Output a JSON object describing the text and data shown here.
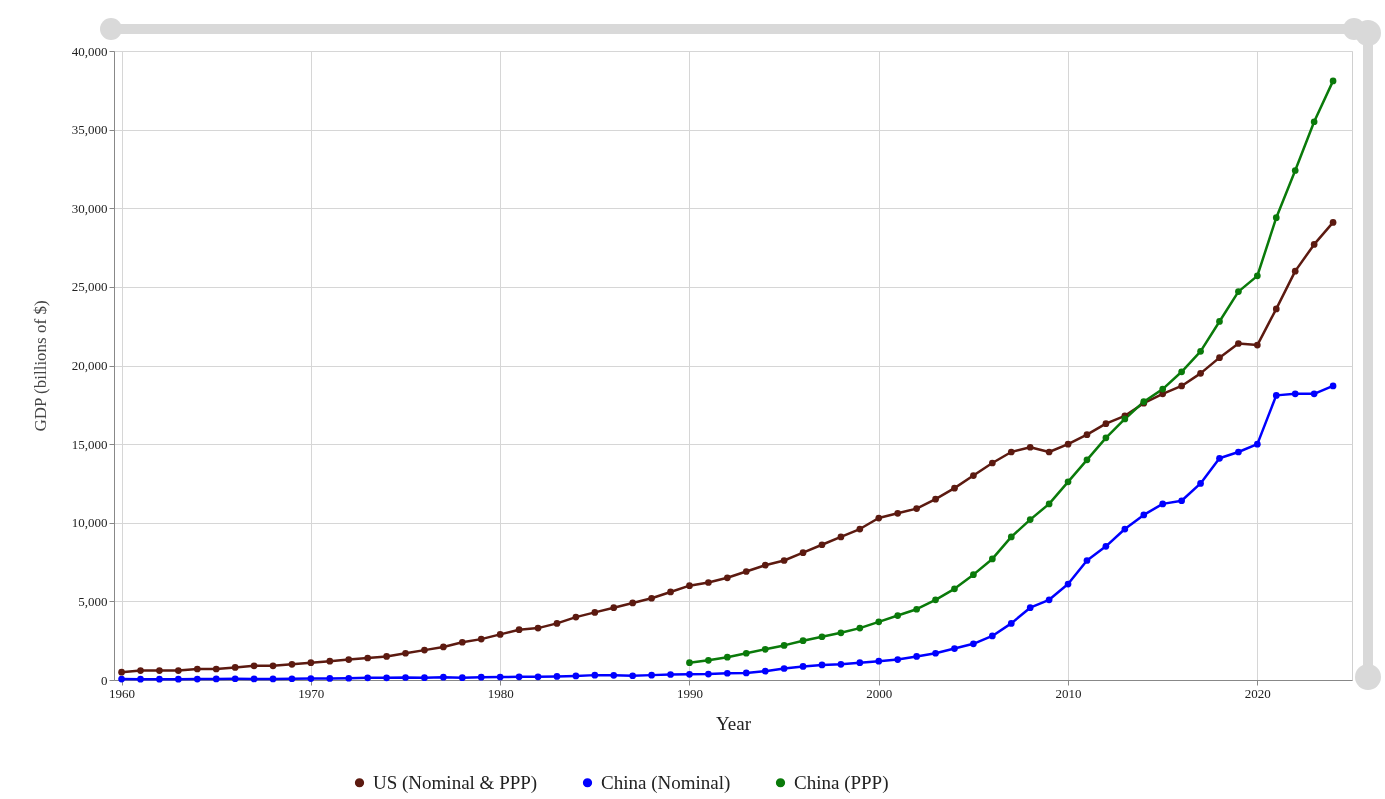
{
  "chart_data": {
    "type": "line",
    "xlabel": "Year",
    "ylabel": "GDP (billions of $)",
    "x": [
      1960,
      1961,
      1962,
      1963,
      1964,
      1965,
      1966,
      1967,
      1968,
      1969,
      1970,
      1971,
      1972,
      1973,
      1974,
      1975,
      1976,
      1977,
      1978,
      1979,
      1980,
      1981,
      1982,
      1983,
      1984,
      1985,
      1986,
      1987,
      1988,
      1989,
      1990,
      1991,
      1992,
      1993,
      1994,
      1995,
      1996,
      1997,
      1998,
      1999,
      2000,
      2001,
      2002,
      2003,
      2004,
      2005,
      2006,
      2007,
      2008,
      2009,
      2010,
      2011,
      2012,
      2013,
      2014,
      2015,
      2016,
      2017,
      2018,
      2019,
      2020,
      2021,
      2022,
      2023,
      2024
    ],
    "series": [
      {
        "name": "US (Nominal & PPP)",
        "color": "#5c1a10",
        "values": [
          500,
          600,
          600,
          600,
          700,
          700,
          800,
          900,
          900,
          1000,
          1100,
          1200,
          1300,
          1400,
          1500,
          1700,
          1900,
          2100,
          2400,
          2600,
          2900,
          3200,
          3300,
          3600,
          4000,
          4300,
          4600,
          4900,
          5200,
          5600,
          6000,
          6200,
          6500,
          6900,
          7300,
          7600,
          8100,
          8600,
          9100,
          9600,
          10300,
          10600,
          10900,
          11500,
          12200,
          13000,
          13800,
          14500,
          14800,
          14500,
          15000,
          15600,
          16300,
          16800,
          17600,
          18200,
          18700,
          19500,
          20500,
          21400,
          21300,
          23600,
          26000,
          27700,
          29100
        ]
      },
      {
        "name": "China (Nominal)",
        "color": "#0000ff",
        "values": [
          60,
          50,
          50,
          50,
          60,
          70,
          80,
          70,
          70,
          80,
          90,
          100,
          110,
          140,
          140,
          160,
          150,
          180,
          150,
          180,
          190,
          200,
          200,
          230,
          260,
          310,
          300,
          270,
          310,
          350,
          360,
          380,
          430,
          450,
          560,
          730,
          860,
          960,
          1000,
          1100,
          1200,
          1300,
          1500,
          1700,
          2000,
          2300,
          2800,
          3600,
          4600,
          5100,
          6100,
          7600,
          8500,
          9600,
          10500,
          11200,
          11400,
          12500,
          14100,
          14500,
          15000,
          18100,
          18200,
          18200,
          18700
        ]
      },
      {
        "name": "China (PPP)",
        "color": "#0a7a0a",
        "x": [
          1990,
          1991,
          1992,
          1993,
          1994,
          1995,
          1996,
          1997,
          1998,
          1999,
          2000,
          2001,
          2002,
          2003,
          2004,
          2005,
          2006,
          2007,
          2008,
          2009,
          2010,
          2011,
          2012,
          2013,
          2014,
          2015,
          2016,
          2017,
          2018,
          2019,
          2020,
          2021,
          2022,
          2023,
          2024
        ],
        "values": [
          1100,
          1250,
          1450,
          1700,
          1950,
          2200,
          2500,
          2750,
          3000,
          3300,
          3700,
          4100,
          4500,
          5100,
          5800,
          6700,
          7700,
          9100,
          10200,
          11200,
          12600,
          14000,
          15400,
          16600,
          17700,
          18500,
          19600,
          20900,
          22800,
          24700,
          25700,
          29400,
          32400,
          35500,
          38100
        ]
      }
    ],
    "xlim": [
      1959.6,
      2025
    ],
    "xticks": [
      1960,
      1970,
      1980,
      1990,
      2000,
      2010,
      2020
    ],
    "ylim": [
      0,
      40000
    ],
    "yticks": [
      0,
      {
        "value": 5000,
        "label": "5,000"
      },
      {
        "value": 10000,
        "label": "10,000"
      },
      {
        "value": 15000,
        "label": "15,000"
      },
      {
        "value": 20000,
        "label": "20,000"
      },
      {
        "value": 25000,
        "label": "25,000"
      },
      {
        "value": 30000,
        "label": "30,000"
      },
      {
        "value": 35000,
        "label": "35,000"
      },
      {
        "value": 40000,
        "label": "40,000"
      }
    ],
    "grid": true,
    "legend": "bottom",
    "marker": "circle",
    "line_style": "solid"
  }
}
